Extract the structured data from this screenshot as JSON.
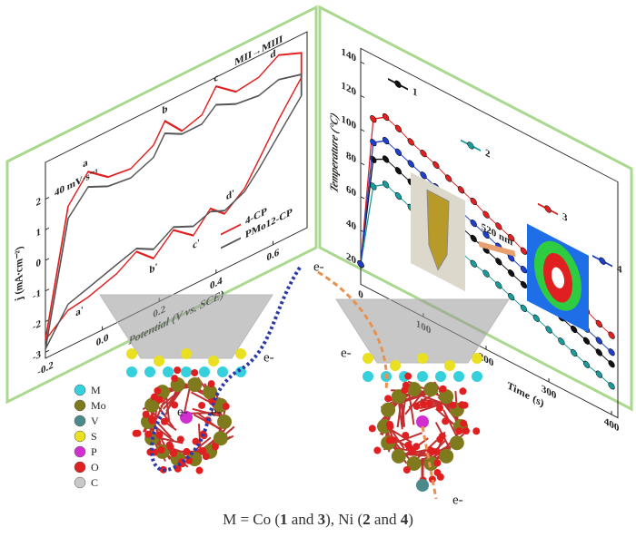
{
  "chart_data": [
    {
      "type": "line",
      "subtitle": "40 mV·s⁻¹",
      "xlabel": "Potential (V vs. SCE)",
      "ylabel": "j (mA·cm⁻²)",
      "annotations": [
        "a",
        "b",
        "c",
        "d",
        "a'",
        "b'",
        "c'",
        "d'",
        "MII→MIII"
      ],
      "x": [
        -0.2,
        -0.12,
        -0.05,
        0.02,
        0.1,
        0.18,
        0.22,
        0.28,
        0.35,
        0.4,
        0.47,
        0.55,
        0.62,
        0.7,
        0.7,
        0.62,
        0.55,
        0.5,
        0.43,
        0.38,
        0.32,
        0.25,
        0.18,
        0.12,
        0.05,
        -0.05,
        -0.12,
        -0.2
      ],
      "series": [
        {
          "name": "4-CP",
          "color": "#e02020",
          "values": [
            -2.6,
            1.4,
            2.2,
            1.7,
            1.6,
            2.0,
            2.6,
            2.0,
            2.2,
            2.9,
            2.4,
            2.5,
            2.9,
            2.6,
            1.8,
            0.8,
            -0.2,
            -0.9,
            -1.4,
            -1.0,
            -1.6,
            -1.1,
            -1.7,
            -1.2,
            -1.6,
            -1.9,
            -2.0,
            -2.6
          ]
        },
        {
          "name": "PMo12-CP",
          "color": "#555555",
          "values": [
            -2.9,
            1.0,
            1.7,
            1.4,
            1.3,
            1.6,
            2.2,
            1.9,
            1.9,
            2.3,
            2.0,
            1.9,
            2.1,
            1.9,
            1.2,
            0.3,
            -0.5,
            -1.0,
            -1.3,
            -1.1,
            -1.3,
            -1.0,
            -1.4,
            -1.1,
            -1.3,
            -1.6,
            -1.8,
            -2.9
          ]
        }
      ],
      "xlim": [
        -0.2,
        0.72
      ],
      "xticks": [
        -0.2,
        {
          "value": 0,
          "label": "0.0"
        },
        0.2,
        0.4,
        0.6
      ],
      "ylim": [
        -3.2,
        3.2
      ],
      "yticks": [
        -3,
        -2,
        -1,
        0,
        1,
        2
      ],
      "legend": "lower right"
    },
    {
      "type": "line",
      "xlabel": "Time (s)",
      "ylabel": "Temperature (°C)",
      "annotations": [
        "520 nm"
      ],
      "x": [
        0,
        20,
        40,
        60,
        80,
        100,
        120,
        140,
        160,
        180,
        200,
        220,
        240,
        260,
        280,
        300,
        320,
        340,
        360,
        380,
        400
      ],
      "series": [
        {
          "name": "1",
          "color": "#111111",
          "values": [
            20,
            86,
            90,
            87,
            84,
            81,
            78,
            76,
            73,
            70,
            67,
            64,
            61,
            58,
            55,
            52,
            50,
            47,
            44,
            41,
            38
          ]
        },
        {
          "name": "2",
          "color": "#1a9a9a",
          "values": [
            20,
            70,
            75,
            72,
            69,
            67,
            64,
            61,
            58,
            55,
            53,
            50,
            47,
            44,
            42,
            39,
            36,
            33,
            30,
            28,
            25
          ]
        },
        {
          "name": "3",
          "color": "#e02020",
          "values": [
            20,
            110,
            115,
            112,
            108,
            105,
            102,
            98,
            95,
            92,
            88,
            85,
            82,
            78,
            75,
            72,
            68,
            65,
            62,
            58,
            55
          ]
        },
        {
          "name": "4",
          "color": "#1f3fc8",
          "values": [
            20,
            96,
            101,
            98,
            95,
            92,
            89,
            85,
            82,
            79,
            76,
            73,
            70,
            67,
            64,
            61,
            57,
            54,
            51,
            48,
            45
          ]
        }
      ],
      "xlim": [
        0,
        410
      ],
      "xticks": [
        0,
        100,
        200,
        300,
        400
      ],
      "ylim": [
        8,
        148
      ],
      "yticks": [
        20,
        40,
        60,
        80,
        100,
        120,
        140
      ],
      "legend": "upper right"
    }
  ],
  "element_legend": [
    {
      "label": "M",
      "color": "#36d0dc"
    },
    {
      "label": "Mo",
      "color": "#807a1e"
    },
    {
      "label": "V",
      "color": "#4a8a8a"
    },
    {
      "label": "S",
      "color": "#e8e020"
    },
    {
      "label": "P",
      "color": "#d030d0"
    },
    {
      "label": "O",
      "color": "#e02020"
    },
    {
      "label": "C",
      "color": "#c8c8c8"
    }
  ],
  "electron_labels": [
    "e-",
    "e-",
    "e-",
    "e-",
    "e-",
    "e-"
  ],
  "caption": [
    "M = Co (",
    "1",
    " and ",
    "3",
    "),  Ni (",
    "2",
    " and ",
    "4",
    ")"
  ]
}
